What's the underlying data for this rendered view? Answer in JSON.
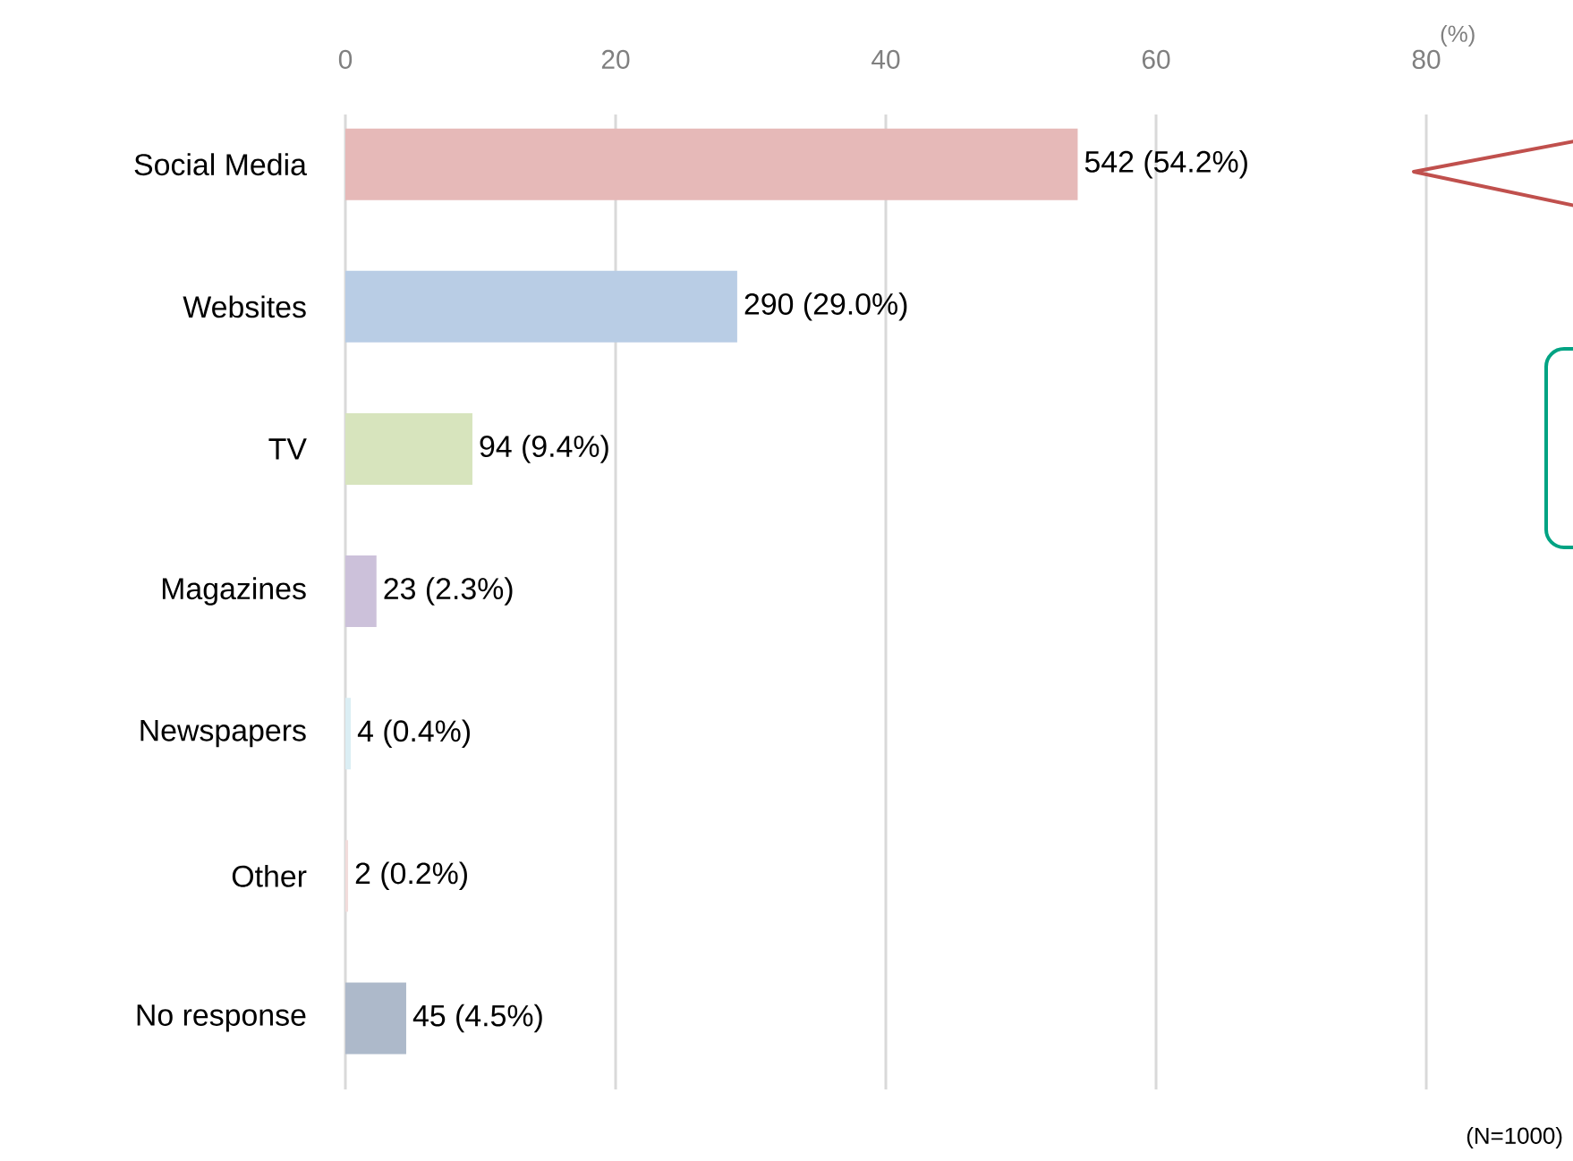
{
  "chart_data": {
    "type": "bar",
    "orientation": "horizontal",
    "categories": [
      "Social Media",
      "Websites",
      "TV",
      "Magazines",
      "Newspapers",
      "Other",
      "No response"
    ],
    "values": [
      54.2,
      29.0,
      9.4,
      2.3,
      0.4,
      0.2,
      4.5
    ],
    "colors": [
      "#e6b9b8",
      "#b9cde5",
      "#d7e4bd",
      "#ccc1da",
      "#dbeef4",
      "#f2dcdb",
      "#adb9ca"
    ],
    "value_labels": [
      "542 (54.2%)",
      "290 (29.0%)",
      "94 (9.4%)",
      "23 (2.3%)",
      "4 (0.4%)",
      "2 (0.2%)",
      "45 (4.5%)"
    ],
    "xlabel": "(%)",
    "xlim": [
      0,
      80
    ],
    "xticks": [
      0,
      20,
      40,
      60,
      80
    ],
    "grid": "x",
    "annotations": [
      "(N=1000)"
    ]
  }
}
